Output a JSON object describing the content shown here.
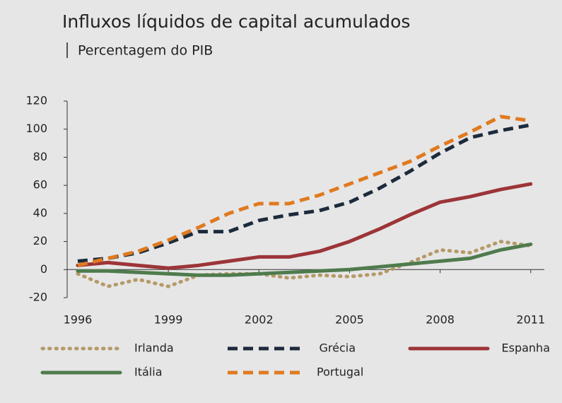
{
  "chart_data": {
    "type": "line",
    "title": "Influxos líquidos de capital acumulados",
    "subtitle": "Percentagem do PIB",
    "x": [
      1996,
      1997,
      1998,
      1999,
      2000,
      2001,
      2002,
      2003,
      2004,
      2005,
      2006,
      2007,
      2008,
      2009,
      2010,
      2011
    ],
    "xlim": [
      1995.65,
      2011.45
    ],
    "xticks": [
      1996,
      1999,
      2002,
      2005,
      2008,
      2011
    ],
    "ylim": [
      -20,
      120
    ],
    "yticks": [
      -20,
      0,
      20,
      40,
      60,
      80,
      100,
      120
    ],
    "grid": false,
    "legend": "bottom",
    "series": [
      {
        "name": "Irlanda",
        "color": "#b59a68",
        "style": "dotted",
        "values": [
          -3,
          -12,
          -7,
          -12,
          -4,
          -3,
          -3,
          -6,
          -4,
          -5,
          -3,
          5,
          14,
          12,
          20,
          17
        ]
      },
      {
        "name": "Grécia",
        "color": "#1c2b3c",
        "style": "dashed",
        "values": [
          6,
          8,
          12,
          19,
          27,
          27,
          35,
          39,
          42,
          48,
          58,
          70,
          83,
          94,
          99,
          103
        ]
      },
      {
        "name": "Espanha",
        "color": "#9c3538",
        "style": "solid",
        "values": [
          3,
          5,
          3,
          1,
          3,
          6,
          9,
          9,
          13,
          20,
          29,
          39,
          48,
          52,
          57,
          61
        ]
      },
      {
        "name": "Itália",
        "color": "#4f7b4d",
        "style": "solid",
        "values": [
          -1,
          -1,
          -2,
          -3,
          -4,
          -4,
          -3,
          -2,
          -1,
          0,
          2,
          4,
          6,
          8,
          14,
          18
        ]
      },
      {
        "name": "Portugal",
        "color": "#e07a1f",
        "style": "dashed",
        "values": [
          3,
          8,
          13,
          21,
          30,
          40,
          47,
          47,
          53,
          61,
          69,
          77,
          88,
          98,
          109,
          106
        ]
      }
    ]
  }
}
